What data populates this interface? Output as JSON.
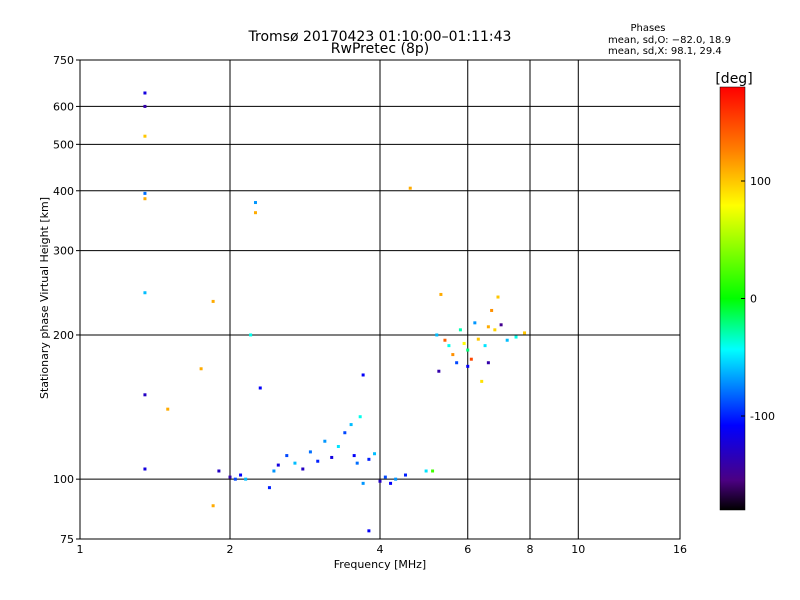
{
  "chart_data": {
    "type": "scatter",
    "title": "Tromsø 20170423 01:10:00–01:11:43",
    "subtitle": "RwPretec (8p)",
    "stats": {
      "heading": "Phases",
      "line1": "mean, sd,O: −82.0, 18.9",
      "line2": "mean, sd,X:  98.1, 29.4"
    },
    "xlabel": "Frequency [MHz]",
    "ylabel": "Stationary phase Virtual Height [km]",
    "x_scale": "log",
    "y_scale": "log",
    "xlim": [
      1,
      16
    ],
    "ylim": [
      75,
      750
    ],
    "x_ticks": [
      1,
      2,
      4,
      6,
      8,
      10,
      16
    ],
    "y_ticks": [
      75,
      100,
      200,
      300,
      400,
      500,
      600,
      750
    ],
    "x_grid": [
      2,
      4,
      6,
      8,
      10
    ],
    "y_grid": [
      100,
      200,
      300,
      400,
      500,
      600
    ],
    "grid": true,
    "colorbar": {
      "label": "[deg]",
      "range": [
        -180,
        180
      ],
      "ticks": [
        100,
        0,
        -100
      ],
      "colors": [
        "#000000",
        "#4b0082",
        "#0000ff",
        "#00ffff",
        "#00ff00",
        "#ffff00",
        "#ff8000",
        "#ff0000"
      ]
    },
    "points": [
      {
        "x": 1.35,
        "y": 640,
        "p": -120
      },
      {
        "x": 1.35,
        "y": 600,
        "p": -140
      },
      {
        "x": 1.35,
        "y": 520,
        "p": 100
      },
      {
        "x": 1.35,
        "y": 395,
        "p": -80
      },
      {
        "x": 1.35,
        "y": 385,
        "p": 110
      },
      {
        "x": 1.35,
        "y": 245,
        "p": -60
      },
      {
        "x": 1.35,
        "y": 150,
        "p": -130
      },
      {
        "x": 1.35,
        "y": 105,
        "p": -120
      },
      {
        "x": 2.25,
        "y": 378,
        "p": -70
      },
      {
        "x": 2.25,
        "y": 360,
        "p": 110
      },
      {
        "x": 1.5,
        "y": 140,
        "p": 110
      },
      {
        "x": 1.75,
        "y": 170,
        "p": 110
      },
      {
        "x": 1.85,
        "y": 235,
        "p": 110
      },
      {
        "x": 1.85,
        "y": 88,
        "p": 110
      },
      {
        "x": 2.2,
        "y": 200,
        "p": -40
      },
      {
        "x": 2.3,
        "y": 155,
        "p": -110
      },
      {
        "x": 3.7,
        "y": 165,
        "p": -110
      },
      {
        "x": 4.6,
        "y": 405,
        "p": 110
      },
      {
        "x": 3.8,
        "y": 78,
        "p": -110
      },
      {
        "x": 1.9,
        "y": 104,
        "p": -130
      },
      {
        "x": 2.0,
        "y": 101,
        "p": -140
      },
      {
        "x": 2.05,
        "y": 100,
        "p": -90
      },
      {
        "x": 2.1,
        "y": 102,
        "p": -110
      },
      {
        "x": 2.15,
        "y": 100,
        "p": -60
      },
      {
        "x": 2.4,
        "y": 96,
        "p": -100
      },
      {
        "x": 2.45,
        "y": 104,
        "p": -70
      },
      {
        "x": 2.5,
        "y": 107,
        "p": -120
      },
      {
        "x": 2.6,
        "y": 112,
        "p": -90
      },
      {
        "x": 2.7,
        "y": 108,
        "p": -60
      },
      {
        "x": 2.8,
        "y": 105,
        "p": -130
      },
      {
        "x": 2.9,
        "y": 114,
        "p": -80
      },
      {
        "x": 3.0,
        "y": 109,
        "p": -100
      },
      {
        "x": 3.1,
        "y": 120,
        "p": -70
      },
      {
        "x": 3.2,
        "y": 111,
        "p": -120
      },
      {
        "x": 3.3,
        "y": 117,
        "p": -50
      },
      {
        "x": 3.4,
        "y": 125,
        "p": -90
      },
      {
        "x": 3.5,
        "y": 130,
        "p": -60
      },
      {
        "x": 3.55,
        "y": 112,
        "p": -110
      },
      {
        "x": 3.6,
        "y": 108,
        "p": -80
      },
      {
        "x": 3.65,
        "y": 135,
        "p": -40
      },
      {
        "x": 3.7,
        "y": 98,
        "p": -70
      },
      {
        "x": 3.8,
        "y": 110,
        "p": -100
      },
      {
        "x": 3.9,
        "y": 113,
        "p": -60
      },
      {
        "x": 4.0,
        "y": 99,
        "p": -130
      },
      {
        "x": 4.1,
        "y": 101,
        "p": -90
      },
      {
        "x": 4.2,
        "y": 98,
        "p": -110
      },
      {
        "x": 4.3,
        "y": 100,
        "p": -70
      },
      {
        "x": 4.5,
        "y": 102,
        "p": -100
      },
      {
        "x": 4.95,
        "y": 104,
        "p": -50
      },
      {
        "x": 5.1,
        "y": 104,
        "p": 20
      },
      {
        "x": 5.2,
        "y": 200,
        "p": -60
      },
      {
        "x": 5.25,
        "y": 168,
        "p": -140
      },
      {
        "x": 5.4,
        "y": 195,
        "p": 140
      },
      {
        "x": 5.5,
        "y": 190,
        "p": -40
      },
      {
        "x": 5.6,
        "y": 182,
        "p": 120
      },
      {
        "x": 5.7,
        "y": 175,
        "p": -90
      },
      {
        "x": 5.8,
        "y": 205,
        "p": -30
      },
      {
        "x": 5.9,
        "y": 192,
        "p": 80
      },
      {
        "x": 6.0,
        "y": 186,
        "p": -20
      },
      {
        "x": 6.1,
        "y": 178,
        "p": 150
      },
      {
        "x": 6.2,
        "y": 212,
        "p": -70
      },
      {
        "x": 6.3,
        "y": 196,
        "p": 100
      },
      {
        "x": 6.5,
        "y": 190,
        "p": -50
      },
      {
        "x": 6.6,
        "y": 208,
        "p": 110
      },
      {
        "x": 6.7,
        "y": 225,
        "p": 120
      },
      {
        "x": 6.8,
        "y": 205,
        "p": 95
      },
      {
        "x": 6.9,
        "y": 240,
        "p": 100
      },
      {
        "x": 7.0,
        "y": 210,
        "p": -150
      },
      {
        "x": 7.2,
        "y": 195,
        "p": -60
      },
      {
        "x": 7.5,
        "y": 198,
        "p": -40
      },
      {
        "x": 7.8,
        "y": 202,
        "p": 100
      },
      {
        "x": 5.3,
        "y": 243,
        "p": 110
      },
      {
        "x": 6.4,
        "y": 160,
        "p": 90
      },
      {
        "x": 6.0,
        "y": 172,
        "p": -110
      },
      {
        "x": 6.6,
        "y": 175,
        "p": -140
      }
    ]
  }
}
